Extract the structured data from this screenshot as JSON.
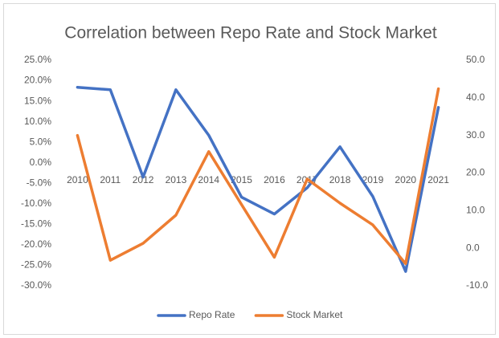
{
  "chart_data": {
    "type": "line",
    "title": "Correlation between Repo Rate and Stock Market",
    "categories": [
      "2010",
      "2011",
      "2012",
      "2013",
      "2014",
      "2015",
      "2016",
      "2017",
      "2018",
      "2019",
      "2020",
      "2021"
    ],
    "series": [
      {
        "name": "Repo Rate",
        "color": "#4472c4",
        "values": [
          18.4,
          17.8,
          -3.5,
          17.8,
          6.7,
          -8.4,
          -12.5,
          -6.1,
          3.9,
          -8.2,
          -26.5,
          13.5
        ]
      },
      {
        "name": "Stock Market",
        "color": "#ed7d31",
        "axis": "y2",
        "values": [
          30.0,
          -3.2,
          1.3,
          8.8,
          25.7,
          11.6,
          -2.4,
          18.4,
          12.0,
          6.2,
          -4.1,
          42.4
        ]
      }
    ],
    "ylim": [
      -30,
      25
    ],
    "yticks": [
      {
        "value": 25,
        "label": "25.0%"
      },
      {
        "value": 20,
        "label": "20.0%"
      },
      {
        "value": 15,
        "label": "15.0%"
      },
      {
        "value": 10,
        "label": "10.0%"
      },
      {
        "value": 5,
        "label": "5.0%"
      },
      {
        "value": 0,
        "label": "0.0%"
      },
      {
        "value": -5,
        "label": "-5.0%"
      },
      {
        "value": -10,
        "label": "-10.0%"
      },
      {
        "value": -15,
        "label": "-15.0%"
      },
      {
        "value": -20,
        "label": "-20.0%"
      },
      {
        "value": -25,
        "label": "-25.0%"
      },
      {
        "value": -30,
        "label": "-30.0%"
      }
    ],
    "y2lim": [
      -10,
      50
    ],
    "y2ticks": [
      {
        "value": 50,
        "label": "50.0"
      },
      {
        "value": 40,
        "label": "40.0"
      },
      {
        "value": 30,
        "label": "30.0"
      },
      {
        "value": 20,
        "label": "20.0"
      },
      {
        "value": 10,
        "label": "10.0"
      },
      {
        "value": 0,
        "label": "0.0"
      },
      {
        "value": -10,
        "label": "-10.0"
      }
    ],
    "legend": "bottom"
  }
}
